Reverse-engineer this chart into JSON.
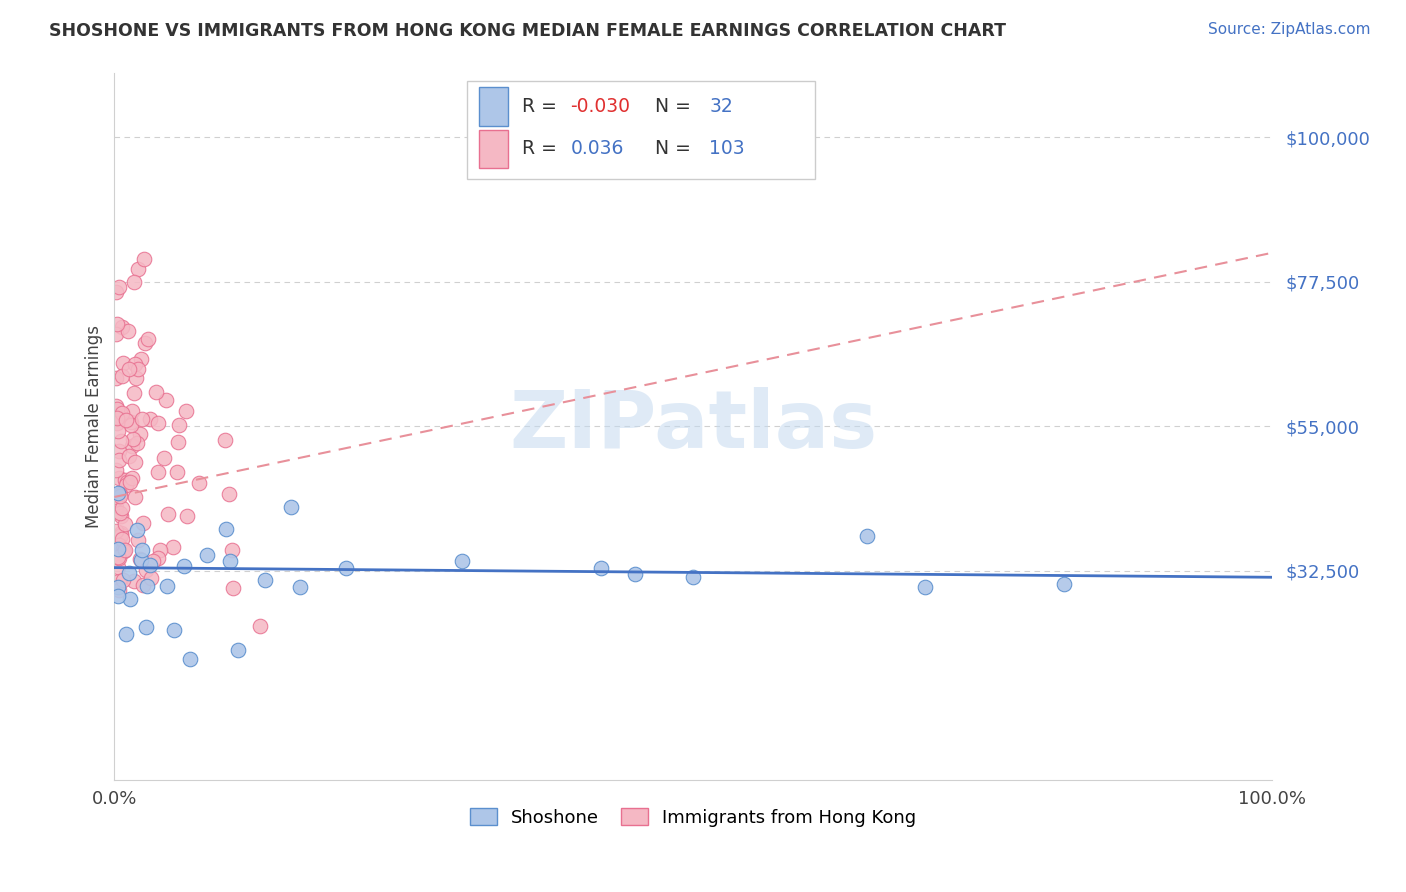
{
  "title": "SHOSHONE VS IMMIGRANTS FROM HONG KONG MEDIAN FEMALE EARNINGS CORRELATION CHART",
  "source": "Source: ZipAtlas.com",
  "ylabel": "Median Female Earnings",
  "xlim": [
    0.0,
    1.0
  ],
  "ylim": [
    0,
    110000
  ],
  "yticks": [
    32500,
    55000,
    77500,
    100000
  ],
  "ytick_labels": [
    "$32,500",
    "$55,000",
    "$77,500",
    "$100,000"
  ],
  "xtick_labels": [
    "0.0%",
    "100.0%"
  ],
  "blue_color": "#aec6e8",
  "pink_color": "#f5b8c4",
  "blue_edge_color": "#5b8fce",
  "pink_edge_color": "#e87090",
  "blue_line_color": "#4472c4",
  "pink_line_color": "#e8909a",
  "grid_color": "#d0d0d0",
  "spine_color": "#d0d0d0",
  "watermark_color": "#c5daf0",
  "title_color": "#333333",
  "ytick_color": "#4472c4",
  "source_color": "#4472c4",
  "legend_r1": "-0.030",
  "legend_n1": "32",
  "legend_r2": "0.036",
  "legend_n2": "103",
  "legend_r1_color": "#e03030",
  "legend_r2_color": "#4472c4",
  "legend_n_color": "#4472c4",
  "blue_trend_y0": 33000,
  "blue_trend_y1": 31500,
  "pink_trend_y0": 44000,
  "pink_trend_y1": 82000
}
